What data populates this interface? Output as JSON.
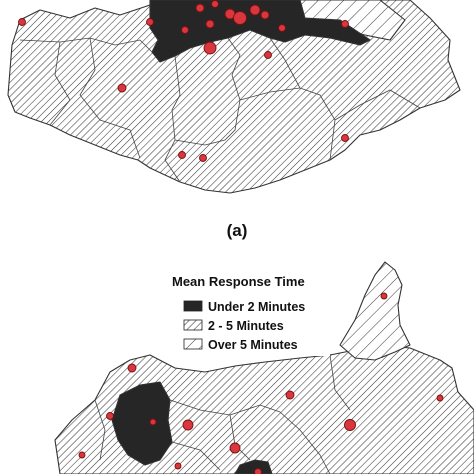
{
  "panel_label": "(a)",
  "legend": {
    "title": "Mean Response Time",
    "items": [
      {
        "label": "Under 2 Minutes",
        "fill": "solid"
      },
      {
        "label": "2 - 5 Minutes",
        "fill": "dense-hatch"
      },
      {
        "label": "Over 5 Minutes",
        "fill": "sparse-hatch"
      }
    ]
  },
  "colors": {
    "solid": "#262626",
    "hatch_line": "#3a3a3a",
    "hatch_bg": "#ffffff",
    "station": "#d9363e",
    "boundary": "#333333"
  },
  "station_marker": "red-circle"
}
